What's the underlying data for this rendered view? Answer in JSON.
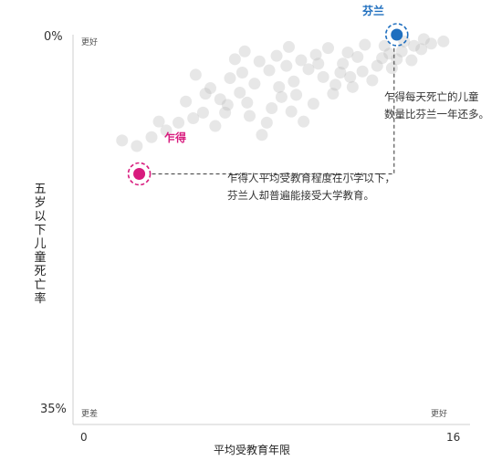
{
  "chart_data": {
    "type": "scatter",
    "title": "",
    "xlabel": "平均受教育年限",
    "ylabel": "五岁以下儿童死亡率",
    "xlim": [
      0,
      16
    ],
    "ylim": [
      0,
      35
    ],
    "y_inverted": true,
    "x_tick_labels": [
      "0",
      "16"
    ],
    "y_tick_labels": [
      "0%",
      "35%"
    ],
    "corner_labels": {
      "top_left": "更好",
      "bottom_left": "更差",
      "bottom_right": "更好"
    },
    "grid": false,
    "background_points": [
      [
        2.0,
        9.5
      ],
      [
        2.6,
        10.0
      ],
      [
        3.2,
        9.2
      ],
      [
        3.8,
        8.6
      ],
      [
        4.3,
        7.9
      ],
      [
        4.9,
        7.5
      ],
      [
        5.3,
        7.0
      ],
      [
        5.8,
        8.2
      ],
      [
        6.3,
        6.3
      ],
      [
        6.8,
        5.2
      ],
      [
        7.2,
        7.3
      ],
      [
        7.7,
        9.0
      ],
      [
        8.1,
        6.6
      ],
      [
        8.5,
        5.6
      ],
      [
        9.0,
        4.2
      ],
      [
        9.4,
        7.8
      ],
      [
        9.8,
        6.2
      ],
      [
        10.2,
        3.8
      ],
      [
        10.6,
        5.3
      ],
      [
        11.0,
        2.6
      ],
      [
        11.4,
        4.7
      ],
      [
        11.8,
        3.3
      ],
      [
        12.2,
        4.1
      ],
      [
        12.6,
        2.1
      ],
      [
        13.0,
        3.0
      ],
      [
        13.4,
        1.5
      ],
      [
        13.8,
        2.3
      ],
      [
        14.2,
        1.3
      ],
      [
        14.6,
        0.8
      ],
      [
        15.1,
        0.6
      ],
      [
        6.6,
        2.2
      ],
      [
        7.0,
        1.5
      ],
      [
        7.6,
        2.4
      ],
      [
        8.3,
        1.9
      ],
      [
        8.8,
        1.1
      ],
      [
        9.3,
        2.3
      ],
      [
        9.9,
        1.8
      ],
      [
        10.4,
        1.2
      ],
      [
        11.2,
        1.6
      ],
      [
        11.9,
        0.9
      ],
      [
        12.7,
        1.0
      ],
      [
        13.5,
        0.6
      ],
      [
        14.3,
        0.4
      ],
      [
        5.0,
        3.6
      ],
      [
        5.6,
        4.8
      ],
      [
        6.0,
        5.8
      ],
      [
        6.9,
        3.4
      ],
      [
        7.4,
        4.4
      ],
      [
        8.0,
        3.2
      ],
      [
        8.7,
        2.8
      ],
      [
        9.6,
        3.1
      ],
      [
        10.9,
        3.4
      ],
      [
        12.4,
        2.8
      ],
      [
        13.2,
        2.2
      ],
      [
        4.6,
        6.0
      ],
      [
        3.5,
        7.8
      ],
      [
        10.0,
        2.6
      ],
      [
        11.6,
        2.0
      ],
      [
        8.4,
        4.7
      ],
      [
        6.4,
        3.9
      ],
      [
        7.9,
        7.9
      ],
      [
        10.7,
        4.5
      ],
      [
        12.9,
        1.7
      ],
      [
        9.1,
        5.4
      ],
      [
        13.9,
        1.0
      ],
      [
        5.4,
        5.3
      ],
      [
        11.3,
        3.8
      ],
      [
        7.1,
        6.1
      ],
      [
        8.9,
        6.9
      ],
      [
        6.2,
        7.0
      ]
    ],
    "highlighted_points": [
      {
        "name": "乍得",
        "x": 2.7,
        "y": 12.5,
        "color": "#d81b7e"
      },
      {
        "name": "芬兰",
        "x": 13.2,
        "y": 0,
        "color": "#1f6fbf"
      }
    ],
    "annotations": [
      [
        "乍得每天死亡的儿童",
        "数量比芬兰一年还多。"
      ],
      [
        "乍得人平均受教育程度在小学以下，",
        "芬兰人却普遍能接受大学教育。"
      ]
    ]
  }
}
